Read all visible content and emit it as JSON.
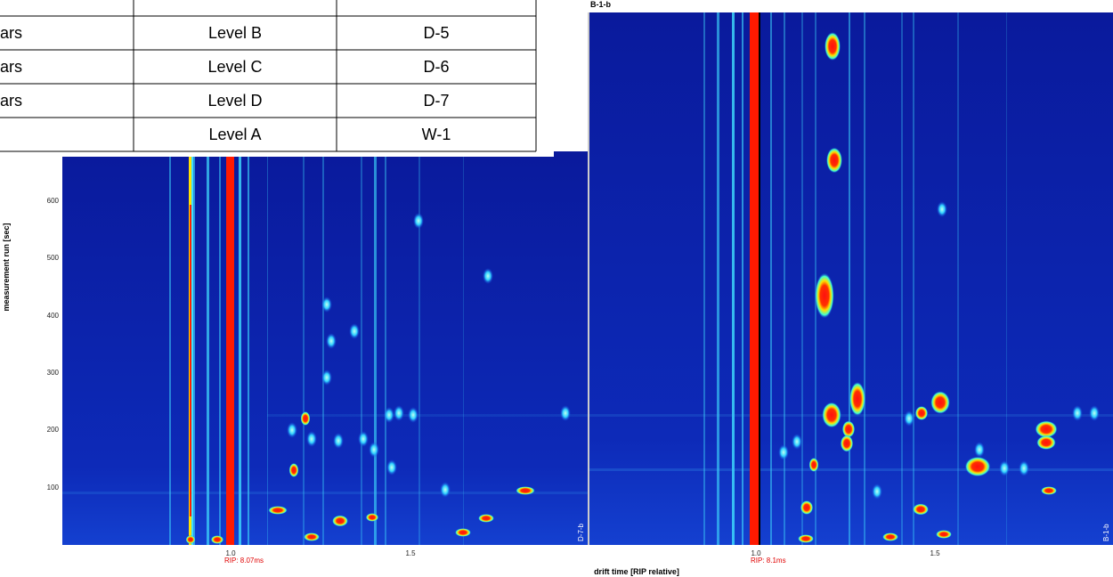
{
  "table": {
    "rows": [
      {
        "cells": [
          "ars",
          "Level B",
          "D-5"
        ]
      },
      {
        "cells": [
          "ars",
          "Level C",
          "D-6"
        ]
      },
      {
        "cells": [
          "ars",
          "Level D",
          "D-7"
        ]
      },
      {
        "cells": [
          "Level A",
          "W-1"
        ]
      }
    ]
  },
  "panels": [
    {
      "label": "D-7-b",
      "rip": "RIP: 8.07ms",
      "xticks": [
        "1.0",
        "1.5"
      ]
    },
    {
      "title": "B-1-b",
      "label": "B-1-b",
      "rip": "RIP: 8.1ms",
      "xticks": [
        "1.0",
        "1.5"
      ]
    }
  ],
  "y_axis": {
    "label": "measurement run [sec]",
    "ticks": [
      "600",
      "500",
      "400",
      "300",
      "200",
      "100"
    ]
  },
  "x_axis_label": "drift time [RIP relative]"
}
